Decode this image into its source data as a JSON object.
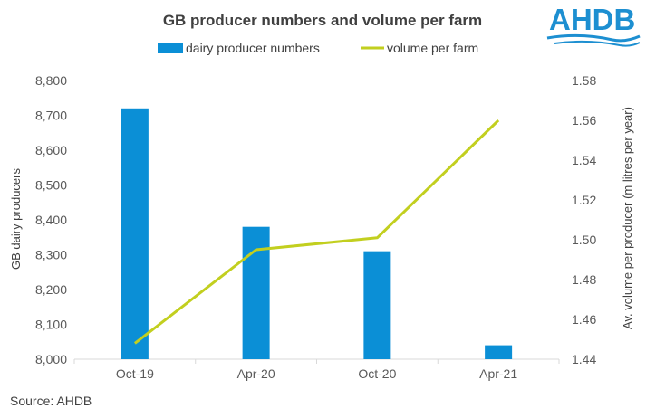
{
  "chart_data": {
    "type": "bar",
    "title": "GB producer numbers and volume per farm",
    "categories": [
      "Oct-19",
      "Apr-20",
      "Oct-20",
      "Apr-21"
    ],
    "series": [
      {
        "name": "dairy producer numbers",
        "type": "bar",
        "axis": "left",
        "color": "#0b8fd6",
        "values": [
          8720,
          8380,
          8310,
          8040
        ]
      },
      {
        "name": "volume per farm",
        "type": "line",
        "axis": "right",
        "color": "#c2cf1f",
        "values": [
          1.448,
          1.495,
          1.501,
          1.56
        ]
      }
    ],
    "y_left": {
      "label": "GB dairy producers",
      "ylim": [
        8000,
        8800
      ],
      "ticks": [
        "8,000",
        "8,100",
        "8,200",
        "8,300",
        "8,400",
        "8,500",
        "8,600",
        "8,700",
        "8,800"
      ]
    },
    "y_right": {
      "label": "Av. volume  per producer (m litres per year)",
      "ylim": [
        1.44,
        1.58
      ],
      "ticks": [
        "1.44",
        "1.46",
        "1.48",
        "1.50",
        "1.52",
        "1.54",
        "1.56",
        "1.58"
      ]
    },
    "grid": false,
    "legend": "top-center"
  },
  "source": "Source:  AHDB",
  "logo": {
    "text": "AHDB",
    "color": "#1d8fd1"
  }
}
